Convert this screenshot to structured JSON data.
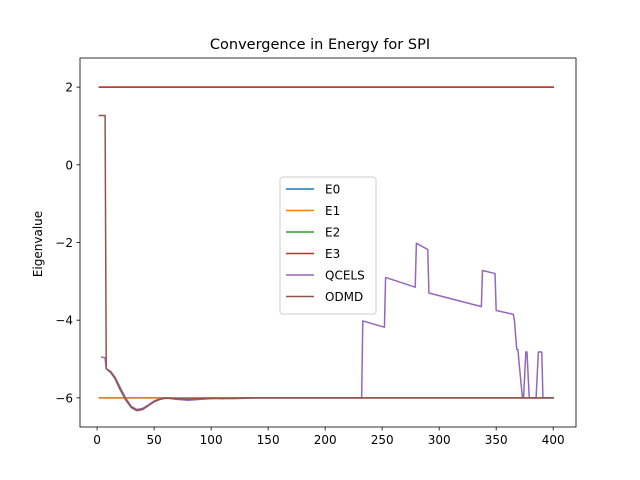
{
  "chart_data": {
    "type": "line",
    "title": "Convergence in Energy for SPI",
    "xlabel": "",
    "ylabel": "Eigenvalue",
    "xlim": [
      -15,
      420
    ],
    "ylim": [
      -6.75,
      2.75
    ],
    "xticks": [
      0,
      50,
      100,
      150,
      200,
      250,
      300,
      350,
      400
    ],
    "yticks": [
      -6,
      -4,
      -2,
      0,
      2
    ],
    "ytick_labels": [
      "−6",
      "−4",
      "−2",
      "0",
      "2"
    ],
    "grid": false,
    "legend": "center",
    "series": [
      {
        "name": "E0",
        "color": "#1f77b4",
        "x": [
          2,
          400
        ],
        "y": [
          -6,
          -6
        ]
      },
      {
        "name": "E1",
        "color": "#ff7f0e",
        "x": [
          2,
          400
        ],
        "y": [
          -6,
          -6
        ]
      },
      {
        "name": "E2",
        "color": "#2ca02c",
        "x": [
          2,
          400
        ],
        "y": [
          2,
          2
        ]
      },
      {
        "name": "E3",
        "color": "#d62728",
        "x": [
          2,
          400
        ],
        "y": [
          2,
          2
        ]
      },
      {
        "name": "QCELS",
        "color": "#9467bd",
        "x": [
          4,
          7,
          8,
          12,
          16,
          20,
          25,
          30,
          35,
          40,
          45,
          50,
          55,
          60,
          70,
          80,
          90,
          100,
          110,
          120,
          130,
          140,
          150,
          170,
          190,
          210,
          230,
          232,
          233,
          252,
          253,
          279,
          280,
          290,
          291,
          337,
          338,
          349,
          350,
          365,
          366,
          368,
          369,
          373,
          374,
          376,
          377,
          379,
          380,
          385,
          387,
          390,
          391,
          393,
          394,
          396,
          400
        ],
        "y": [
          -4.95,
          -4.97,
          -5.25,
          -5.32,
          -5.48,
          -5.72,
          -6.0,
          -6.22,
          -6.3,
          -6.27,
          -6.18,
          -6.08,
          -6.02,
          -6.0,
          -6.04,
          -6.06,
          -6.04,
          -6.02,
          -6.01,
          -6.02,
          -6.01,
          -6.0,
          -6.0,
          -6.0,
          -6.0,
          -6.0,
          -6.0,
          -6.0,
          -4.02,
          -4.18,
          -2.9,
          -3.15,
          -2.02,
          -2.18,
          -3.3,
          -3.65,
          -2.72,
          -2.8,
          -3.75,
          -3.85,
          -4.0,
          -4.75,
          -4.75,
          -6.0,
          -6.0,
          -4.82,
          -4.82,
          -6.0,
          -6.0,
          -6.0,
          -4.82,
          -4.82,
          -6.0,
          -6.0,
          -6.0,
          -6.0,
          -6.0
        ]
      },
      {
        "name": "ODMD",
        "color": "#8c564b",
        "x": [
          2,
          6,
          7,
          8,
          12,
          16,
          20,
          25,
          30,
          35,
          40,
          45,
          50,
          55,
          60,
          70,
          80,
          90,
          100,
          110,
          120,
          130,
          140,
          150,
          170,
          190,
          210,
          230,
          260,
          300,
          350,
          400
        ],
        "y": [
          1.27,
          1.27,
          1.27,
          -5.25,
          -5.35,
          -5.52,
          -5.78,
          -6.05,
          -6.25,
          -6.33,
          -6.3,
          -6.2,
          -6.1,
          -6.04,
          -6.01,
          -6.02,
          -6.03,
          -6.02,
          -6.01,
          -6.02,
          -6.01,
          -6.0,
          -6.0,
          -6.0,
          -6.0,
          -6.0,
          -6.0,
          -6.0,
          -6.0,
          -6.0,
          -6.0,
          -6.0
        ]
      }
    ]
  }
}
